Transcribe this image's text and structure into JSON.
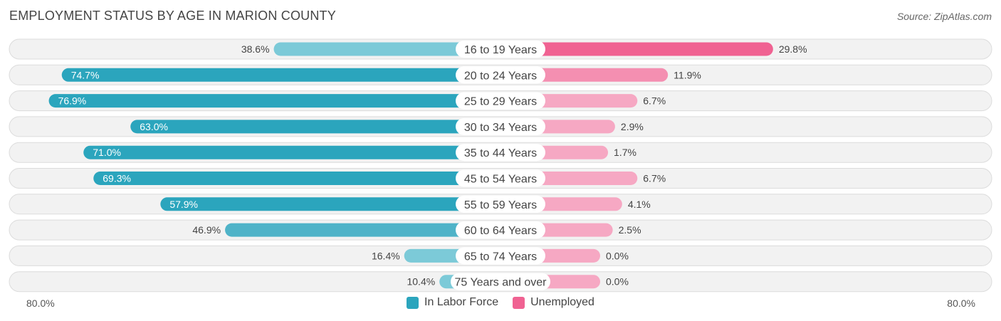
{
  "title": "EMPLOYMENT STATUS BY AGE IN MARION COUNTY",
  "source": "Source: ZipAtlas.com",
  "axis": {
    "left_label": "80.0%",
    "right_label": "80.0%"
  },
  "legend": [
    {
      "name": "In Labor Force",
      "color": "#2ba5bd"
    },
    {
      "name": "Unemployed",
      "color": "#f06292"
    }
  ],
  "chart_data": {
    "type": "bar",
    "orientation": "horizontal-diverging",
    "categories": [
      "16 to 19 Years",
      "20 to 24 Years",
      "25 to 29 Years",
      "30 to 34 Years",
      "35 to 44 Years",
      "45 to 54 Years",
      "55 to 59 Years",
      "60 to 64 Years",
      "65 to 74 Years",
      "75 Years and over"
    ],
    "series": [
      {
        "name": "In Labor Force",
        "values": [
          38.6,
          74.7,
          76.9,
          63.0,
          71.0,
          69.3,
          57.9,
          46.9,
          16.4,
          10.4
        ],
        "labels": [
          "38.6%",
          "74.7%",
          "76.9%",
          "63.0%",
          "71.0%",
          "69.3%",
          "57.9%",
          "46.9%",
          "16.4%",
          "10.4%"
        ]
      },
      {
        "name": "Unemployed",
        "values": [
          29.8,
          11.9,
          6.7,
          2.9,
          1.7,
          6.7,
          4.1,
          2.5,
          0.0,
          0.0
        ],
        "labels": [
          "29.8%",
          "11.9%",
          "6.7%",
          "2.9%",
          "1.7%",
          "6.7%",
          "4.1%",
          "2.5%",
          "0.0%",
          "0.0%"
        ]
      }
    ],
    "xlim": [
      0,
      80
    ],
    "unit": "%"
  }
}
